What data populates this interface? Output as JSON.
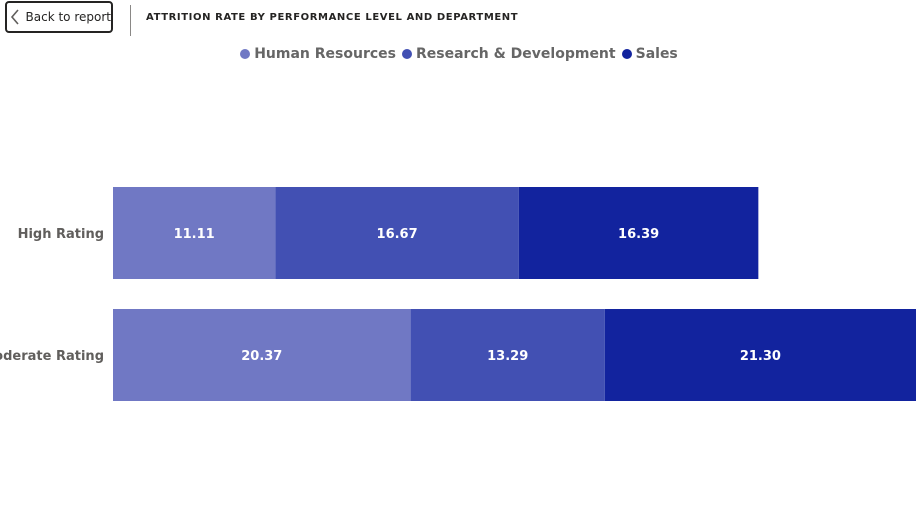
{
  "header": {
    "back_label": "Back to report",
    "title": "ATTRITION RATE BY PERFORMANCE LEVEL AND DEPARTMENT"
  },
  "icons": {
    "back": "chevron-left-icon"
  },
  "chart_data": {
    "type": "bar",
    "orientation": "horizontal",
    "stacked": true,
    "categories": [
      "High Rating",
      "Moderate Rating"
    ],
    "series": [
      {
        "name": "Human Resources",
        "color": "#7078c4",
        "values": [
          11.11,
          20.37
        ],
        "labels": [
          "11.11",
          "20.37"
        ]
      },
      {
        "name": "Research & Development",
        "color": "#4250b3",
        "values": [
          16.67,
          13.29
        ],
        "labels": [
          "16.67",
          "13.29"
        ]
      },
      {
        "name": "Sales",
        "color": "#12239e",
        "values": [
          16.39,
          21.3
        ],
        "labels": [
          "16.39",
          "21.30"
        ]
      }
    ],
    "xlim": [
      0,
      54.96
    ],
    "legend": "top-center",
    "grid": false,
    "data_labels": true
  }
}
